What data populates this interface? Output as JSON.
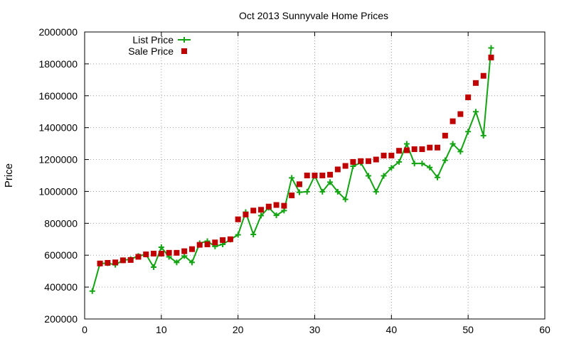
{
  "chart_data": {
    "type": "line",
    "title": "Oct 2013 Sunnyvale Home Prices",
    "xlabel": "",
    "ylabel": "Price",
    "xlim": [
      0,
      60
    ],
    "ylim": [
      200000,
      2000000
    ],
    "x_ticks": [
      0,
      10,
      20,
      30,
      40,
      50,
      60
    ],
    "y_ticks": [
      200000,
      400000,
      600000,
      800000,
      1000000,
      1200000,
      1400000,
      1600000,
      1800000,
      2000000
    ],
    "grid": true,
    "legend_position": "top-left",
    "series": [
      {
        "name": "List Price",
        "style": "line-with-plus-markers",
        "color": "#13a313",
        "x": [
          1,
          2,
          3,
          4,
          5,
          6,
          7,
          8,
          9,
          10,
          11,
          12,
          13,
          14,
          15,
          16,
          17,
          18,
          19,
          20,
          21,
          22,
          23,
          24,
          25,
          26,
          27,
          28,
          29,
          30,
          31,
          32,
          33,
          34,
          35,
          36,
          37,
          38,
          39,
          40,
          41,
          42,
          43,
          44,
          45,
          46,
          47,
          48,
          49,
          50,
          51,
          52,
          53
        ],
        "y": [
          375000,
          548000,
          550000,
          540000,
          568000,
          575000,
          595000,
          605000,
          525000,
          650000,
          590000,
          555000,
          595000,
          555000,
          675000,
          688000,
          655000,
          668000,
          698000,
          728000,
          870000,
          730000,
          848000,
          898000,
          850000,
          880000,
          1085000,
          995000,
          998000,
          1098000,
          998000,
          1058000,
          998000,
          950000,
          1158000,
          1180000,
          1098000,
          998000,
          1098000,
          1148000,
          1185000,
          1298000,
          1175000,
          1175000,
          1150000,
          1088000,
          1195000,
          1298000,
          1250000,
          1375000,
          1500000,
          1350000,
          1900000
        ]
      },
      {
        "name": "Sale Price",
        "style": "square-markers",
        "color": "#c00000",
        "x": [
          2,
          3,
          4,
          5,
          6,
          7,
          8,
          9,
          10,
          11,
          12,
          13,
          14,
          15,
          16,
          17,
          18,
          19,
          20,
          21,
          22,
          23,
          24,
          25,
          26,
          27,
          28,
          29,
          30,
          31,
          32,
          33,
          34,
          35,
          36,
          37,
          38,
          39,
          40,
          41,
          42,
          43,
          44,
          45,
          46,
          47,
          48,
          49,
          50,
          51,
          52,
          53
        ],
        "y": [
          548000,
          552000,
          555000,
          568000,
          570000,
          590000,
          605000,
          610000,
          610000,
          615000,
          615000,
          625000,
          638000,
          665000,
          668000,
          680000,
          695000,
          700000,
          825000,
          855000,
          880000,
          885000,
          905000,
          915000,
          910000,
          975000,
          1045000,
          1100000,
          1100000,
          1100000,
          1105000,
          1138000,
          1160000,
          1185000,
          1190000,
          1190000,
          1200000,
          1225000,
          1225000,
          1255000,
          1258000,
          1265000,
          1265000,
          1275000,
          1275000,
          1350000,
          1440000,
          1485000,
          1590000,
          1680000,
          1725000,
          1840000
        ]
      }
    ]
  }
}
